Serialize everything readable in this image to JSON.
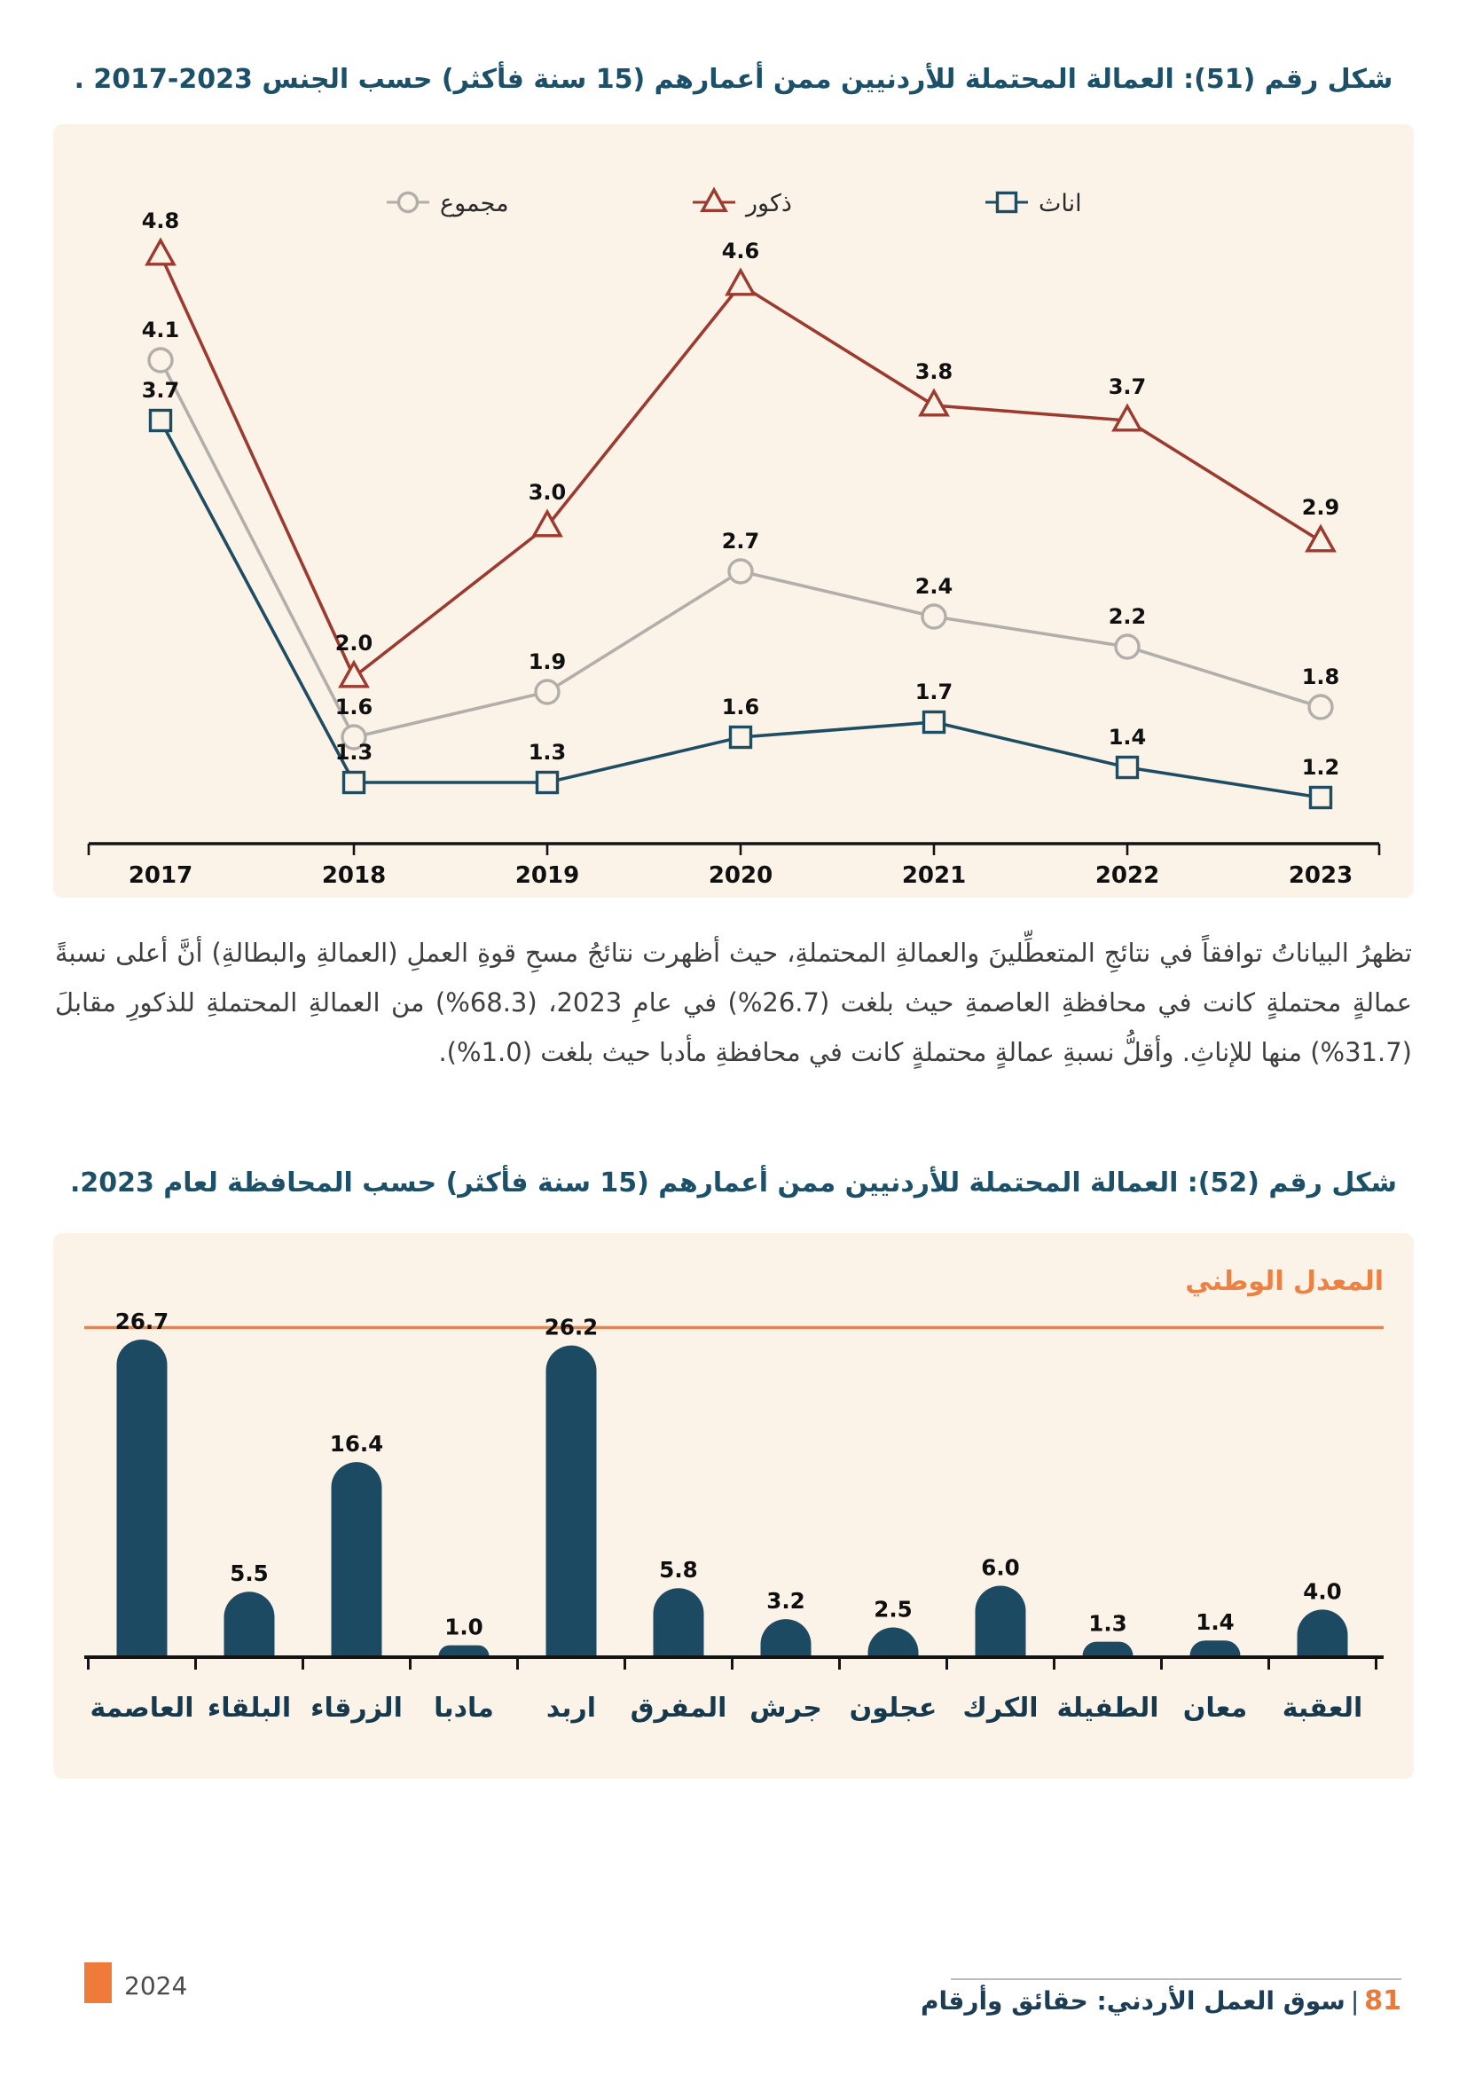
{
  "figure51_title": "شكل رقم (51): العمالة المحتملة للأردنيين ممن أعمارهم (15 سنة فأكثر) حسب الجنس 2023-2017 .",
  "figure52_title": "شكل رقم (52): العمالة المحتملة للأردنيين ممن أعمارهم (15 سنة فأكثر) حسب المحافظة لعام 2023.",
  "paragraph": "تظهرُ البياناتُ توافقاً في نتائجِ المتعطِّلينَ والعمالةِ المحتملةِ، حيث أظهرت نتائجُ مسحِ قوةِ العملِ (العمالةِ والبطالةِ) أنَّ أعلى نسبةً عمالةٍ محتملةٍ كانت في محافظةِ العاصمةِ حيث بلغت (26.7%) في عامِ 2023، (68.3%) من العمالةِ المحتملةِ للذكورِ مقابلَ (31.7%) منها للإناثِ. وأقلُّ نسبةِ عمالةٍ محتملةٍ كانت في محافظةِ مأدبا حيث بلغت (1.0%).",
  "chart_data": [
    {
      "type": "line",
      "title": "شكل رقم (51): العمالة المحتملة للأردنيين ممن أعمارهم (15 سنة فأكثر) حسب الجنس 2023-2017 .",
      "x": [
        "2017",
        "2018",
        "2019",
        "2020",
        "2021",
        "2022",
        "2023"
      ],
      "series": [
        {
          "id": "total",
          "name": "مجموع",
          "marker": "circle",
          "color": "#b2aeaa",
          "values": [
            4.1,
            1.6,
            1.9,
            2.7,
            2.4,
            2.2,
            1.8
          ]
        },
        {
          "id": "males",
          "name": "ذكور",
          "marker": "triangle",
          "color": "#9d3a2f",
          "values": [
            4.8,
            2.0,
            3.0,
            4.6,
            3.8,
            3.7,
            2.9
          ]
        },
        {
          "id": "females",
          "name": "اناث",
          "marker": "square",
          "color": "#1e4d63",
          "values": [
            3.7,
            1.3,
            1.3,
            1.6,
            1.7,
            1.4,
            1.2
          ]
        }
      ],
      "legend_position": "top",
      "grid": false,
      "y_axis_visible": false,
      "ylim": [
        0.9,
        5.2
      ],
      "data_labels": true
    },
    {
      "type": "bar",
      "title": "شكل رقم (52): العمالة المحتملة للأردنيين ممن أعمارهم (15 سنة فأكثر) حسب المحافظة لعام 2023.",
      "categories": [
        "العاصمة",
        "البلقاء",
        "الزرقاء",
        "مادبا",
        "اربد",
        "المفرق",
        "جرش",
        "عجلون",
        "الكرك",
        "الطفيلة",
        "معان",
        "العقبة"
      ],
      "values": [
        26.7,
        5.5,
        16.4,
        1.0,
        26.2,
        5.8,
        3.2,
        2.5,
        6.0,
        1.3,
        1.4,
        4.0
      ],
      "bar_color": "#1d4a63",
      "national_line": {
        "label": "المعدل الوطني",
        "color": "#ed8144",
        "estimated_value": 27.7
      },
      "ylim": [
        0,
        31
      ],
      "grid": false,
      "data_labels": true
    }
  ],
  "footer": {
    "year": "2024",
    "page_number": "81",
    "separator": "|",
    "source": "سوق العمل الأردني: حقائق وأرقام"
  },
  "colors": {
    "panel_background": "#fbf3e8",
    "title_text": "#1b5068",
    "body_text": "#3e3e3e",
    "axis_and_labels": "#111111",
    "category_labels": "#17394d",
    "accent_orange": "#ee7b39",
    "bar_teal": "#1d4a63",
    "males_red": "#9d3a2f",
    "total_gray": "#b2aeaa",
    "females_blue": "#1e4d63"
  }
}
